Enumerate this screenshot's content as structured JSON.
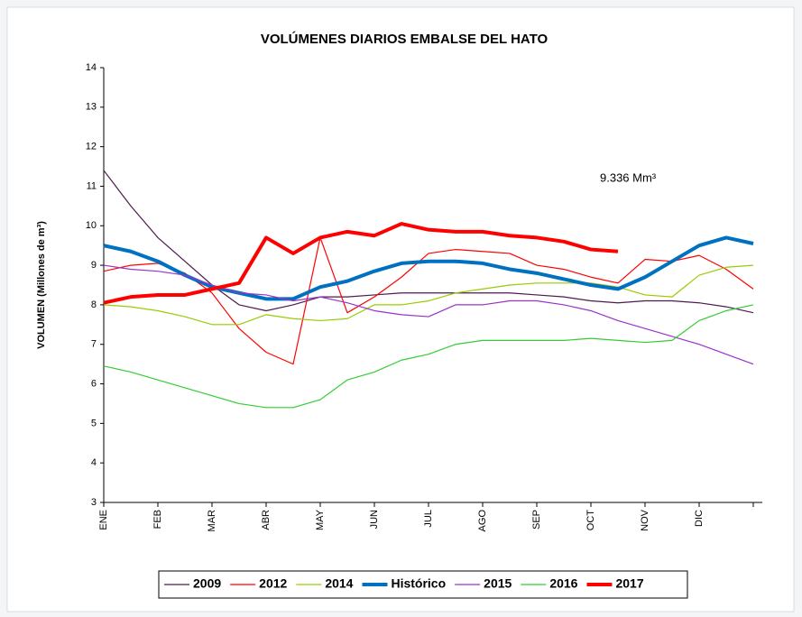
{
  "chart_data": {
    "type": "line",
    "title": "VOLÚMENES DIARIOS EMBALSE DEL HATO",
    "y_label": "VOLUMEN (Millones de m³)",
    "annotation": "9.336 Mm³",
    "categories": [
      "ENE",
      null,
      "FEB",
      null,
      "MAR",
      null,
      "ABR",
      null,
      "MAY",
      null,
      "JUN",
      null,
      "JUL",
      null,
      "AGO",
      null,
      "SEP",
      null,
      "OCT",
      null,
      "NOV",
      null,
      "DIC",
      null,
      null
    ],
    "ylim": [
      3,
      14
    ],
    "yticks": [
      3,
      4,
      5,
      6,
      7,
      8,
      9,
      10,
      11,
      12,
      13,
      14
    ],
    "series": [
      {
        "name": "2009",
        "color": "#4d1a4d",
        "line_width": 1.2,
        "values": [
          11.4,
          10.5,
          9.7,
          9.1,
          8.5,
          8.0,
          7.85,
          8.0,
          8.2,
          8.2,
          8.25,
          8.3,
          8.3,
          8.3,
          8.3,
          8.3,
          8.25,
          8.2,
          8.1,
          8.05,
          8.1,
          8.1,
          8.05,
          7.95,
          7.8
        ]
      },
      {
        "name": "2012",
        "color": "#ff0000",
        "line_width": 1.2,
        "values": [
          8.85,
          9.0,
          9.05,
          8.8,
          8.3,
          7.4,
          6.8,
          6.5,
          9.7,
          7.8,
          8.2,
          8.7,
          9.3,
          9.4,
          9.35,
          9.3,
          9.0,
          8.9,
          8.7,
          8.55,
          9.15,
          9.1,
          9.25,
          8.9,
          8.4
        ]
      },
      {
        "name": "2014",
        "color": "#99cc00",
        "line_width": 1.2,
        "values": [
          8.0,
          7.95,
          7.85,
          7.7,
          7.5,
          7.5,
          7.75,
          7.65,
          7.6,
          7.65,
          8.0,
          8.0,
          8.1,
          8.3,
          8.4,
          8.5,
          8.55,
          8.55,
          8.55,
          8.45,
          8.25,
          8.2,
          8.75,
          8.95,
          9.0
        ]
      },
      {
        "name": "Histórico",
        "color": "#0070c0",
        "line_width": 4,
        "values": [
          9.5,
          9.35,
          9.1,
          8.75,
          8.45,
          8.3,
          8.15,
          8.15,
          8.45,
          8.6,
          8.85,
          9.05,
          9.1,
          9.1,
          9.05,
          8.9,
          8.8,
          8.65,
          8.5,
          8.4,
          8.7,
          9.1,
          9.5,
          9.7,
          9.55
        ]
      },
      {
        "name": "2015",
        "color": "#9933cc",
        "line_width": 1.2,
        "values": [
          9.0,
          8.9,
          8.85,
          8.75,
          8.5,
          8.3,
          8.25,
          8.1,
          8.2,
          8.05,
          7.85,
          7.75,
          7.7,
          8.0,
          8.0,
          8.1,
          8.1,
          8.0,
          7.85,
          7.6,
          7.4,
          7.2,
          7.0,
          6.75,
          6.5
        ]
      },
      {
        "name": "2016",
        "color": "#33cc33",
        "line_width": 1.2,
        "values": [
          6.45,
          6.3,
          6.1,
          5.9,
          5.7,
          5.5,
          5.4,
          5.4,
          5.6,
          6.1,
          6.3,
          6.6,
          6.75,
          7.0,
          7.1,
          7.1,
          7.1,
          7.1,
          7.15,
          7.1,
          7.05,
          7.1,
          7.6,
          7.85,
          8.0
        ]
      },
      {
        "name": "2017",
        "color": "#ff0000",
        "line_width": 4,
        "values": [
          8.05,
          8.2,
          8.25,
          8.25,
          8.4,
          8.55,
          9.7,
          9.3,
          9.7,
          9.85,
          9.75,
          10.05,
          9.9,
          9.85,
          9.85,
          9.75,
          9.7,
          9.6,
          9.4,
          9.35,
          null,
          null,
          null,
          null,
          null
        ]
      }
    ]
  }
}
